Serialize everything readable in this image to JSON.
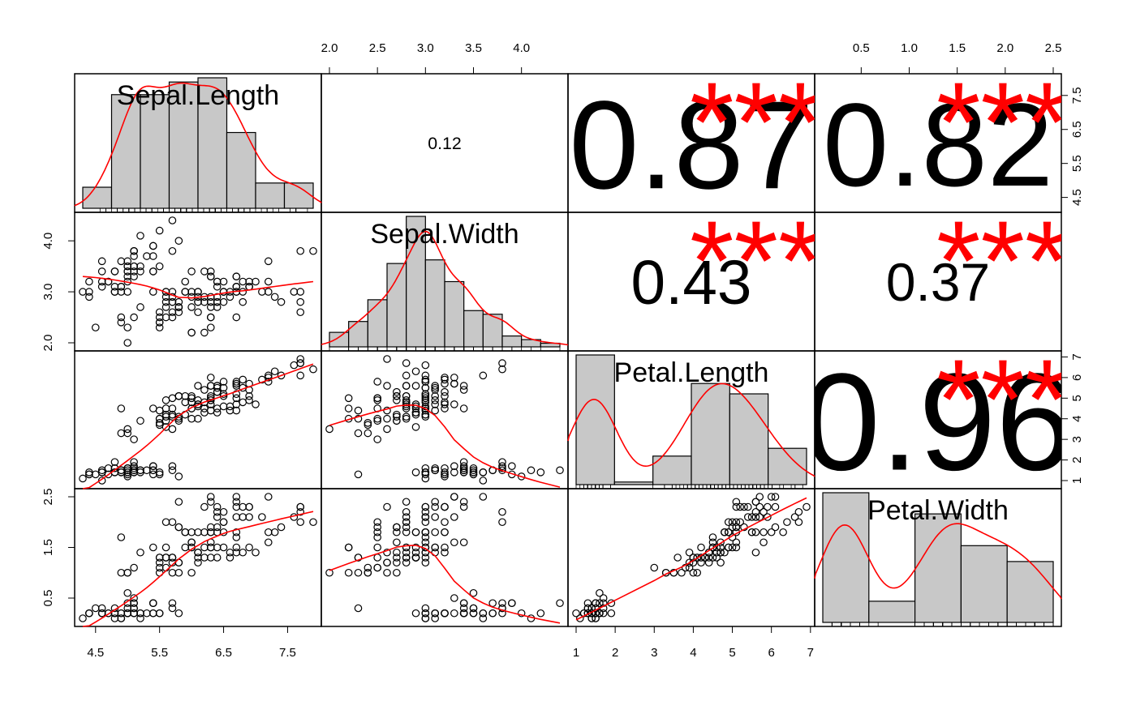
{
  "colors": {
    "bar_fill": "#c8c8c8",
    "density_line": "#ff0000",
    "significance": "#ff0000",
    "text": "#000000",
    "frame": "#000000"
  },
  "chart_data": {
    "type": "scatter",
    "title": "",
    "variables": [
      "Sepal.Length",
      "Sepal.Width",
      "Petal.Length",
      "Petal.Width"
    ],
    "axes": {
      "Sepal.Length": {
        "range": [
          4.3,
          7.9
        ],
        "ticks": [
          4.5,
          5.5,
          6.5,
          7.5
        ]
      },
      "Sepal.Width": {
        "range": [
          2.0,
          4.4
        ],
        "ticks": [
          2.0,
          3.0,
          4.0
        ]
      },
      "Petal.Length": {
        "range": [
          1.0,
          6.9
        ],
        "ticks": [
          1,
          2,
          3,
          4,
          5,
          6,
          7
        ]
      },
      "Petal.Width": {
        "range": [
          0.1,
          2.5
        ],
        "ticks": [
          0.5,
          1.5,
          2.5
        ]
      }
    },
    "top_axes": {
      "Sepal.Width": [
        2.0,
        2.5,
        3.0,
        3.5,
        4.0
      ],
      "Petal.Width": [
        0.5,
        1.0,
        1.5,
        2.0,
        2.5
      ]
    },
    "right_axes": {
      "Sepal.Length": [
        4.5,
        5.5,
        6.5,
        7.5
      ],
      "Petal.Length": [
        1,
        2,
        3,
        4,
        5,
        6,
        7
      ]
    },
    "correlations": [
      {
        "row": 0,
        "col": 1,
        "label": "0.12",
        "stars": ""
      },
      {
        "row": 0,
        "col": 2,
        "label": "0.87",
        "stars": "***"
      },
      {
        "row": 0,
        "col": 3,
        "label": "0.82",
        "stars": "***"
      },
      {
        "row": 1,
        "col": 2,
        "label": "0.43",
        "stars": "***"
      },
      {
        "row": 1,
        "col": 3,
        "label": "0.37",
        "stars": "***"
      },
      {
        "row": 2,
        "col": 3,
        "label": "0.96",
        "stars": "***"
      }
    ],
    "histograms": [
      {
        "variable": "Sepal.Length",
        "breaks": [
          4.0,
          4.5,
          5.0,
          5.5,
          6.0,
          6.5,
          7.0,
          7.5,
          8.0
        ],
        "counts": [
          5,
          27,
          27,
          30,
          31,
          18,
          6,
          6
        ]
      },
      {
        "variable": "Sepal.Width",
        "breaks": [
          2.0,
          2.2,
          2.4,
          2.6,
          2.8,
          3.0,
          3.2,
          3.4,
          3.6,
          3.8,
          4.0,
          4.2,
          4.4
        ],
        "counts": [
          4,
          7,
          13,
          23,
          36,
          24,
          18,
          10,
          9,
          3,
          2,
          1
        ]
      },
      {
        "variable": "Petal.Length",
        "breaks": [
          1,
          2,
          3,
          4,
          5,
          6,
          7
        ],
        "counts": [
          50,
          1,
          11,
          39,
          35,
          14
        ]
      },
      {
        "variable": "Petal.Width",
        "breaks": [
          0.0,
          0.5,
          1.0,
          1.5,
          2.0,
          2.5
        ],
        "counts": [
          49,
          8,
          41,
          29,
          23
        ]
      }
    ],
    "observations": [
      [
        5.1,
        3.5,
        1.4,
        0.2
      ],
      [
        4.9,
        3.0,
        1.4,
        0.2
      ],
      [
        4.7,
        3.2,
        1.3,
        0.2
      ],
      [
        4.6,
        3.1,
        1.5,
        0.2
      ],
      [
        5.0,
        3.6,
        1.4,
        0.2
      ],
      [
        5.4,
        3.9,
        1.7,
        0.4
      ],
      [
        4.6,
        3.4,
        1.4,
        0.3
      ],
      [
        5.0,
        3.4,
        1.5,
        0.2
      ],
      [
        4.4,
        2.9,
        1.4,
        0.2
      ],
      [
        4.9,
        3.1,
        1.5,
        0.1
      ],
      [
        5.4,
        3.7,
        1.5,
        0.2
      ],
      [
        4.8,
        3.4,
        1.6,
        0.2
      ],
      [
        4.8,
        3.0,
        1.4,
        0.1
      ],
      [
        4.3,
        3.0,
        1.1,
        0.1
      ],
      [
        5.8,
        4.0,
        1.2,
        0.2
      ],
      [
        5.7,
        4.4,
        1.5,
        0.4
      ],
      [
        5.4,
        3.9,
        1.3,
        0.4
      ],
      [
        5.1,
        3.5,
        1.4,
        0.3
      ],
      [
        5.7,
        3.8,
        1.7,
        0.3
      ],
      [
        5.1,
        3.8,
        1.5,
        0.3
      ],
      [
        5.4,
        3.4,
        1.7,
        0.2
      ],
      [
        5.1,
        3.7,
        1.5,
        0.4
      ],
      [
        4.6,
        3.6,
        1.0,
        0.2
      ],
      [
        5.1,
        3.3,
        1.7,
        0.5
      ],
      [
        4.8,
        3.4,
        1.9,
        0.2
      ],
      [
        5.0,
        3.0,
        1.6,
        0.2
      ],
      [
        5.0,
        3.4,
        1.6,
        0.4
      ],
      [
        5.2,
        3.5,
        1.5,
        0.2
      ],
      [
        5.2,
        3.4,
        1.4,
        0.2
      ],
      [
        4.7,
        3.2,
        1.6,
        0.2
      ],
      [
        4.8,
        3.1,
        1.6,
        0.2
      ],
      [
        5.4,
        3.4,
        1.5,
        0.4
      ],
      [
        5.2,
        4.1,
        1.5,
        0.1
      ],
      [
        5.5,
        4.2,
        1.4,
        0.2
      ],
      [
        4.9,
        3.1,
        1.5,
        0.2
      ],
      [
        5.0,
        3.2,
        1.2,
        0.2
      ],
      [
        5.5,
        3.5,
        1.3,
        0.2
      ],
      [
        4.9,
        3.6,
        1.4,
        0.1
      ],
      [
        4.4,
        3.0,
        1.3,
        0.2
      ],
      [
        5.1,
        3.4,
        1.5,
        0.2
      ],
      [
        5.0,
        3.5,
        1.3,
        0.3
      ],
      [
        4.5,
        2.3,
        1.3,
        0.3
      ],
      [
        4.4,
        3.2,
        1.3,
        0.2
      ],
      [
        5.0,
        3.5,
        1.6,
        0.6
      ],
      [
        5.1,
        3.8,
        1.9,
        0.4
      ],
      [
        4.8,
        3.0,
        1.4,
        0.3
      ],
      [
        5.1,
        3.8,
        1.6,
        0.2
      ],
      [
        4.6,
        3.2,
        1.4,
        0.2
      ],
      [
        5.3,
        3.7,
        1.5,
        0.2
      ],
      [
        5.0,
        3.3,
        1.4,
        0.2
      ],
      [
        7.0,
        3.2,
        4.7,
        1.4
      ],
      [
        6.4,
        3.2,
        4.5,
        1.5
      ],
      [
        6.9,
        3.1,
        4.9,
        1.5
      ],
      [
        5.5,
        2.3,
        4.0,
        1.3
      ],
      [
        6.5,
        2.8,
        4.6,
        1.5
      ],
      [
        5.7,
        2.8,
        4.5,
        1.3
      ],
      [
        6.3,
        3.3,
        4.7,
        1.6
      ],
      [
        4.9,
        2.4,
        3.3,
        1.0
      ],
      [
        6.6,
        2.9,
        4.6,
        1.3
      ],
      [
        5.2,
        2.7,
        3.9,
        1.4
      ],
      [
        5.0,
        2.0,
        3.5,
        1.0
      ],
      [
        5.9,
        3.0,
        4.2,
        1.5
      ],
      [
        6.0,
        2.2,
        4.0,
        1.0
      ],
      [
        6.1,
        2.9,
        4.7,
        1.4
      ],
      [
        5.6,
        2.9,
        3.6,
        1.3
      ],
      [
        6.7,
        3.1,
        4.4,
        1.4
      ],
      [
        5.6,
        3.0,
        4.5,
        1.5
      ],
      [
        5.8,
        2.7,
        4.1,
        1.0
      ],
      [
        6.2,
        2.2,
        4.5,
        1.5
      ],
      [
        5.6,
        2.5,
        3.9,
        1.1
      ],
      [
        5.9,
        3.2,
        4.8,
        1.8
      ],
      [
        6.1,
        2.8,
        4.0,
        1.3
      ],
      [
        6.3,
        2.5,
        4.9,
        1.5
      ],
      [
        6.1,
        2.8,
        4.7,
        1.2
      ],
      [
        6.4,
        2.9,
        4.3,
        1.3
      ],
      [
        6.6,
        3.0,
        4.4,
        1.4
      ],
      [
        6.8,
        2.8,
        4.8,
        1.4
      ],
      [
        6.7,
        3.0,
        5.0,
        1.7
      ],
      [
        6.0,
        2.9,
        4.5,
        1.5
      ],
      [
        5.7,
        2.6,
        3.5,
        1.0
      ],
      [
        5.5,
        2.4,
        3.8,
        1.1
      ],
      [
        5.5,
        2.4,
        3.7,
        1.0
      ],
      [
        5.8,
        2.7,
        3.9,
        1.2
      ],
      [
        6.0,
        2.7,
        5.1,
        1.6
      ],
      [
        5.4,
        3.0,
        4.5,
        1.5
      ],
      [
        6.0,
        3.4,
        4.5,
        1.6
      ],
      [
        6.7,
        3.1,
        4.7,
        1.5
      ],
      [
        6.3,
        2.3,
        4.4,
        1.3
      ],
      [
        5.6,
        3.0,
        4.1,
        1.3
      ],
      [
        5.5,
        2.5,
        4.0,
        1.3
      ],
      [
        5.5,
        2.6,
        4.4,
        1.2
      ],
      [
        6.1,
        3.0,
        4.6,
        1.4
      ],
      [
        5.8,
        2.6,
        4.0,
        1.2
      ],
      [
        5.0,
        2.3,
        3.3,
        1.0
      ],
      [
        5.6,
        2.7,
        4.2,
        1.3
      ],
      [
        5.7,
        3.0,
        4.2,
        1.2
      ],
      [
        5.7,
        2.9,
        4.2,
        1.3
      ],
      [
        6.2,
        2.9,
        4.3,
        1.3
      ],
      [
        5.1,
        2.5,
        3.0,
        1.1
      ],
      [
        5.7,
        2.8,
        4.1,
        1.3
      ],
      [
        6.3,
        3.3,
        6.0,
        2.5
      ],
      [
        5.8,
        2.7,
        5.1,
        1.9
      ],
      [
        7.1,
        3.0,
        5.9,
        2.1
      ],
      [
        6.3,
        2.9,
        5.6,
        1.8
      ],
      [
        6.5,
        3.0,
        5.8,
        2.2
      ],
      [
        7.6,
        3.0,
        6.6,
        2.1
      ],
      [
        4.9,
        2.5,
        4.5,
        1.7
      ],
      [
        7.3,
        2.9,
        6.3,
        1.8
      ],
      [
        6.7,
        2.5,
        5.8,
        1.8
      ],
      [
        7.2,
        3.6,
        6.1,
        2.5
      ],
      [
        6.5,
        3.2,
        5.1,
        2.0
      ],
      [
        6.4,
        2.7,
        5.3,
        1.9
      ],
      [
        6.8,
        3.0,
        5.5,
        2.1
      ],
      [
        5.7,
        2.5,
        5.0,
        2.0
      ],
      [
        5.8,
        2.8,
        5.1,
        2.4
      ],
      [
        6.4,
        3.2,
        5.3,
        2.3
      ],
      [
        6.5,
        3.0,
        5.5,
        1.8
      ],
      [
        7.7,
        3.8,
        6.7,
        2.2
      ],
      [
        7.7,
        2.6,
        6.9,
        2.3
      ],
      [
        6.0,
        2.2,
        5.0,
        1.5
      ],
      [
        6.9,
        3.2,
        5.7,
        2.3
      ],
      [
        5.6,
        2.8,
        4.9,
        2.0
      ],
      [
        7.7,
        2.8,
        6.7,
        2.0
      ],
      [
        6.3,
        2.7,
        4.9,
        1.8
      ],
      [
        6.7,
        3.3,
        5.7,
        2.1
      ],
      [
        7.2,
        3.2,
        6.0,
        1.8
      ],
      [
        6.2,
        2.8,
        4.8,
        1.8
      ],
      [
        6.1,
        3.0,
        4.9,
        1.8
      ],
      [
        6.4,
        2.8,
        5.6,
        2.1
      ],
      [
        7.2,
        3.0,
        5.8,
        1.6
      ],
      [
        7.4,
        2.8,
        6.1,
        1.9
      ],
      [
        7.9,
        3.8,
        6.4,
        2.0
      ],
      [
        6.4,
        2.8,
        5.6,
        2.2
      ],
      [
        6.3,
        2.8,
        5.1,
        1.5
      ],
      [
        6.1,
        2.6,
        5.6,
        1.4
      ],
      [
        7.7,
        3.0,
        6.1,
        2.3
      ],
      [
        6.3,
        3.4,
        5.6,
        2.4
      ],
      [
        6.4,
        3.1,
        5.5,
        1.8
      ],
      [
        6.0,
        3.0,
        4.8,
        1.8
      ],
      [
        6.9,
        3.1,
        5.4,
        2.1
      ],
      [
        6.7,
        3.1,
        5.6,
        2.4
      ],
      [
        6.9,
        3.1,
        5.1,
        2.3
      ],
      [
        5.8,
        2.7,
        5.1,
        1.9
      ],
      [
        6.8,
        3.2,
        5.9,
        2.3
      ],
      [
        6.7,
        3.3,
        5.7,
        2.5
      ],
      [
        6.7,
        3.0,
        5.2,
        2.3
      ],
      [
        6.3,
        2.5,
        5.0,
        1.9
      ],
      [
        6.5,
        3.0,
        5.2,
        2.0
      ],
      [
        6.2,
        3.4,
        5.4,
        2.3
      ],
      [
        5.9,
        3.0,
        5.1,
        1.8
      ]
    ]
  }
}
